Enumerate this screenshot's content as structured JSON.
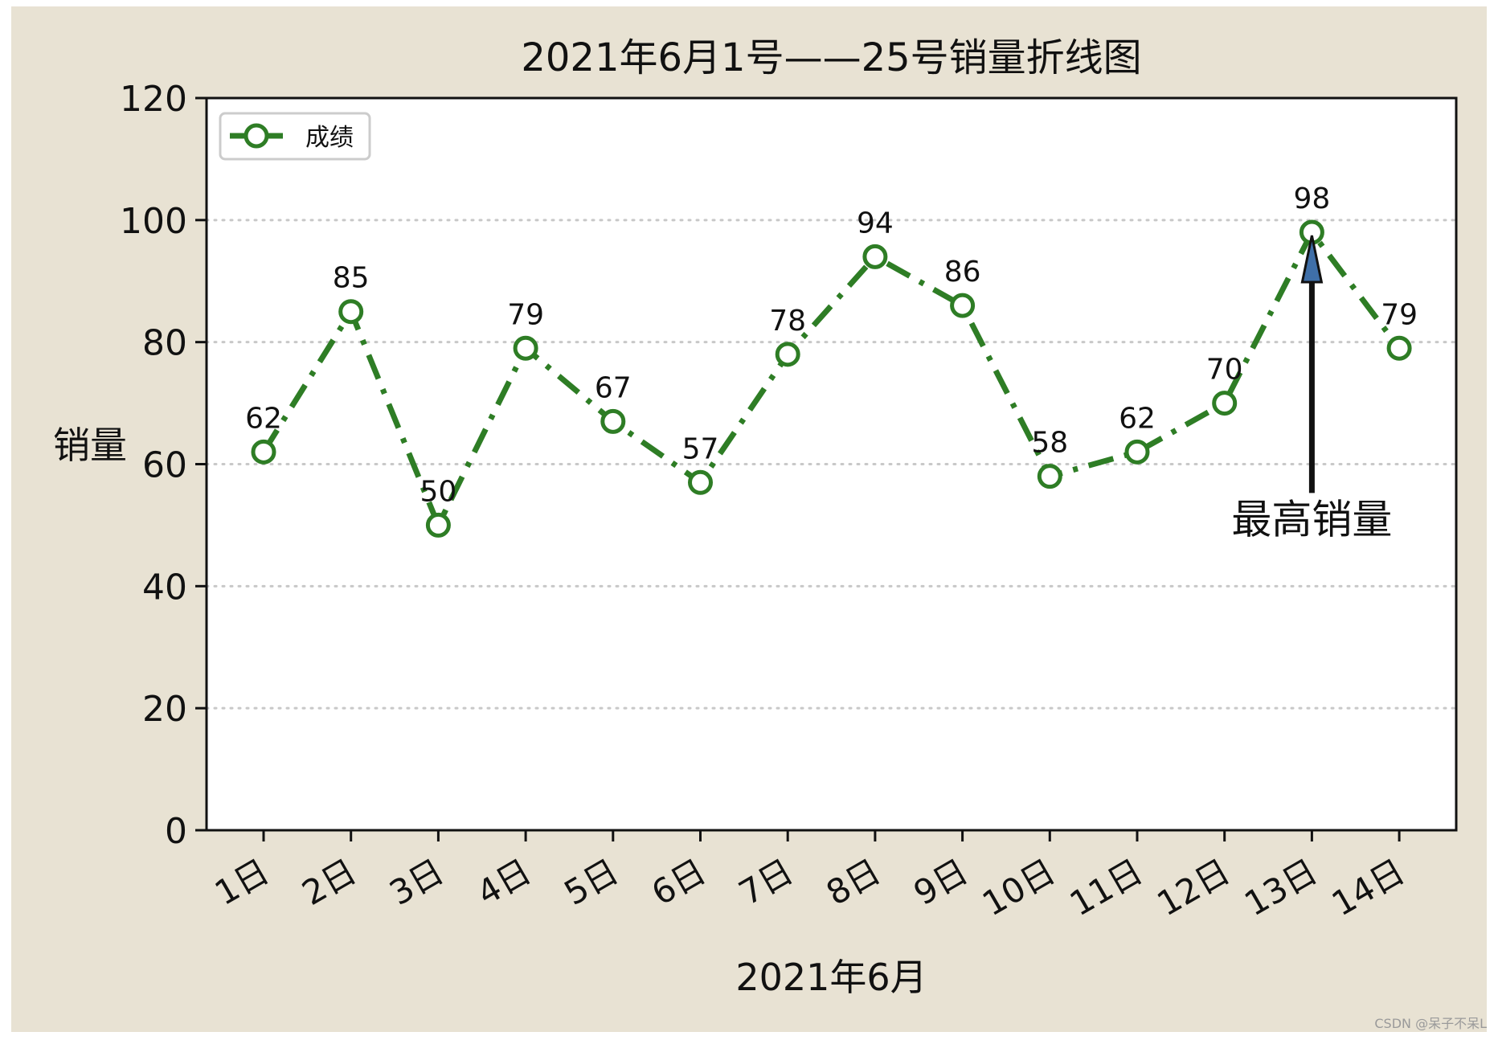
{
  "colors": {
    "figure_background": "#e8e2d3",
    "plot_background": "#ffffff",
    "line": "#2e7d25",
    "grid": "#c8c8c8",
    "arrow_fill": "#3f6fa8"
  },
  "chart_data": {
    "type": "line",
    "title": "2021年6月1号——25号销量折线图",
    "xlabel": "2021年6月",
    "ylabel": "销量",
    "categories": [
      "1日",
      "2日",
      "3日",
      "4日",
      "5日",
      "6日",
      "7日",
      "8日",
      "9日",
      "10日",
      "11日",
      "12日",
      "13日",
      "14日"
    ],
    "series": [
      {
        "name": "成绩",
        "values": [
          62,
          85,
          50,
          79,
          67,
          57,
          78,
          94,
          86,
          58,
          62,
          70,
          98,
          79
        ],
        "line_style": "dash-dot",
        "marker": "hollow-circle"
      }
    ],
    "ylim": [
      0,
      120
    ],
    "yticks": [
      0,
      20,
      40,
      60,
      80,
      100,
      120
    ],
    "grid": "horizontal-dotted",
    "legend_position": "top-left",
    "data_labels": true,
    "annotation": {
      "text": "最高销量",
      "target_category": "13日",
      "target_value": 98
    }
  },
  "watermark": "CSDN @呆子不呆L"
}
